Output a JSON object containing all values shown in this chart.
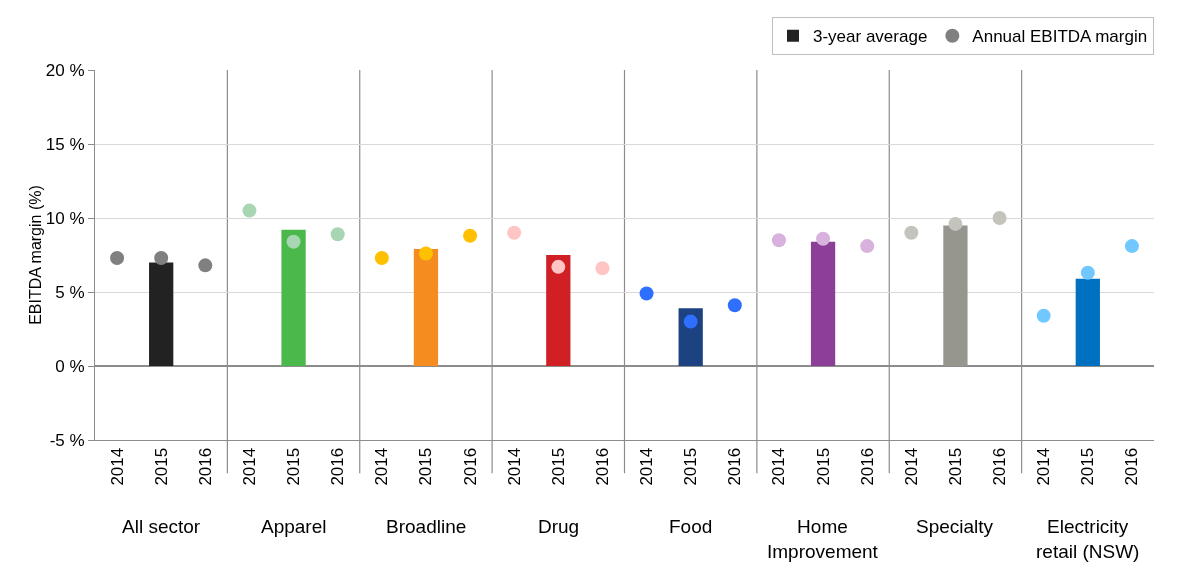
{
  "chart_data": {
    "type": "bar",
    "ylabel": "EBITDA margin (%)",
    "categories": [
      "2014",
      "2015",
      "2016",
      "2014",
      "2015",
      "2016",
      "2014",
      "2015",
      "2016",
      "2014",
      "2015",
      "2016",
      "2014",
      "2015",
      "2016",
      "2014",
      "2015",
      "2016",
      "2014",
      "2015",
      "2016",
      "2014",
      "2015",
      "2016"
    ],
    "series": [
      {
        "name": "3-year average",
        "color": "#222222",
        "values": [
          null,
          7.0,
          null,
          null,
          9.2,
          null,
          null,
          7.9,
          null,
          null,
          7.5,
          null,
          null,
          3.9,
          null,
          null,
          8.4,
          null,
          null,
          9.5,
          null,
          null,
          5.9,
          null
        ],
        "colors": [
          null,
          "#222222",
          null,
          null,
          "#4bb84b",
          null,
          null,
          "#f48c20",
          null,
          null,
          "#d01f25",
          null,
          null,
          "#1c4282",
          null,
          null,
          "#8b3f96",
          null,
          null,
          "#96968e",
          null,
          null,
          "#0070c0",
          null
        ]
      },
      {
        "name": "Annual EBITDA margin",
        "type": "scatter",
        "color": "#808080",
        "values": [
          7.3,
          7.3,
          6.8,
          10.5,
          8.4,
          8.9,
          7.3,
          7.6,
          8.8,
          9.0,
          6.7,
          6.6,
          4.9,
          3.0,
          4.1,
          8.5,
          8.6,
          8.1,
          9.0,
          9.6,
          10.0,
          3.4,
          6.3,
          8.1
        ],
        "colors": [
          "#808080",
          "#808080",
          "#808080",
          "#a8d5b2",
          "#a8d5b2",
          "#a8d5b2",
          "#ffc000",
          "#ffc000",
          "#ffc000",
          "#ffc5c5",
          "#ffc5c5",
          "#ffc5c5",
          "#2f6fff",
          "#2f6fff",
          "#2f6fff",
          "#d8b2dc",
          "#d8b2dc",
          "#d8b2dc",
          "#c4c4bc",
          "#c4c4bc",
          "#c4c4bc",
          "#70c8ff",
          "#70c8ff",
          "#70c8ff"
        ]
      }
    ],
    "ylim": [
      -5,
      20
    ],
    "yticks": [
      {
        "value": -5,
        "label": "-5 %"
      },
      {
        "value": 0,
        "label": "0 %"
      },
      {
        "value": 5,
        "label": "5 %"
      },
      {
        "value": 10,
        "label": "10 %"
      },
      {
        "value": 15,
        "label": "15 %"
      },
      {
        "value": 20,
        "label": "20 %"
      }
    ],
    "grid": "y",
    "legend": "top right",
    "marker": "circle",
    "annotations": [
      "All sector",
      "Apparel",
      "Broadline",
      "Drug",
      "Food",
      "Home\nImprovement",
      "Specialty",
      "Electricity\nretail (NSW)"
    ]
  }
}
